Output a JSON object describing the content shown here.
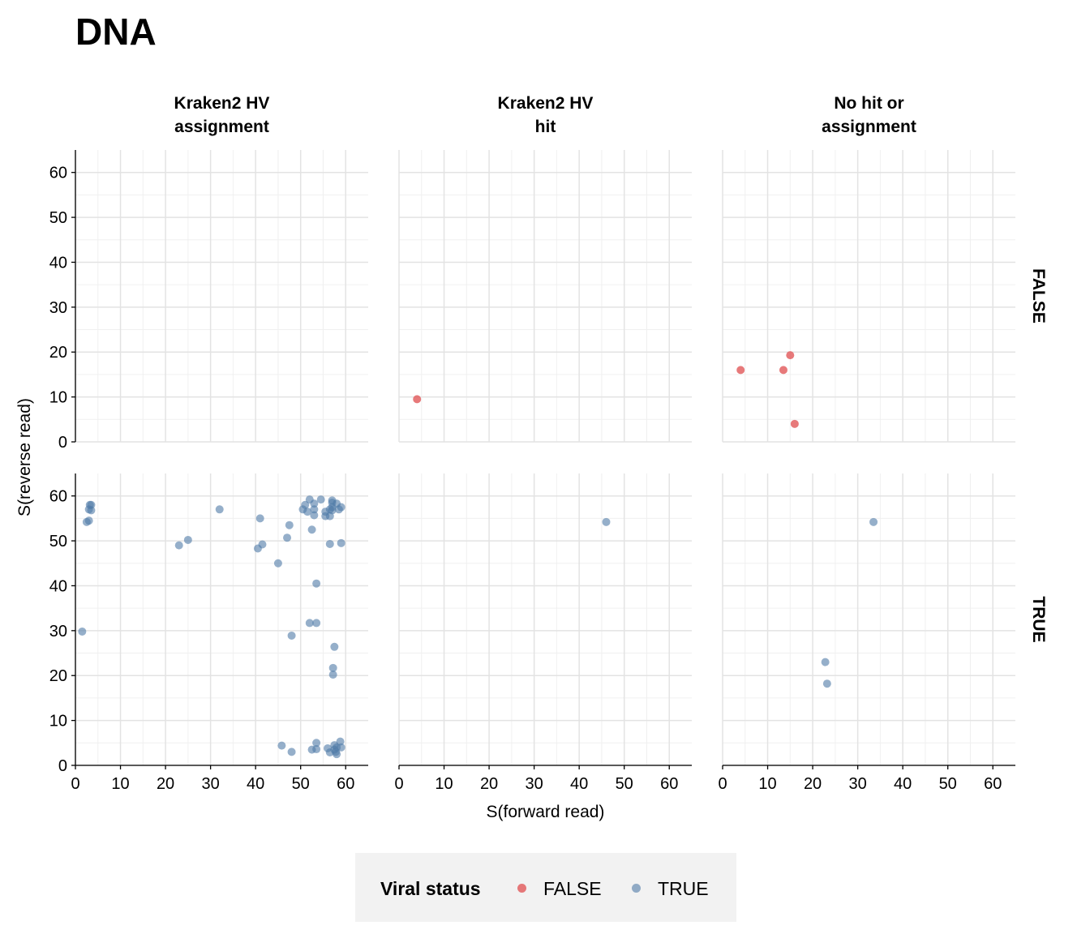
{
  "title": "DNA",
  "chart_data": {
    "type": "scatter",
    "title": "DNA",
    "xlabel": "S(forward read)",
    "ylabel": "S(reverse read)",
    "xlim": [
      0,
      65
    ],
    "ylim": [
      0,
      65
    ],
    "x_ticks": [
      0,
      10,
      20,
      30,
      40,
      50,
      60
    ],
    "y_ticks": [
      0,
      10,
      20,
      30,
      40,
      50,
      60
    ],
    "grid": true,
    "facet_columns": [
      "Kraken2 HV\nassignment",
      "Kraken2 HV\nhit",
      "No hit or\nassignment"
    ],
    "facet_rows": [
      "FALSE",
      "TRUE"
    ],
    "legend": {
      "title": "Viral status",
      "position": "bottom",
      "entries": [
        {
          "label": "FALSE",
          "color": "#e15759"
        },
        {
          "label": "TRUE",
          "color": "#4e79a7"
        }
      ]
    },
    "panels": [
      {
        "col": 0,
        "row": 0,
        "points": []
      },
      {
        "col": 1,
        "row": 0,
        "points": [
          [
            4.0,
            9.5
          ]
        ]
      },
      {
        "col": 2,
        "row": 0,
        "points": [
          [
            4.0,
            16.0
          ],
          [
            13.5,
            16.0
          ],
          [
            15.0,
            19.3
          ],
          [
            16.0,
            4.0
          ]
        ]
      },
      {
        "col": 0,
        "row": 1,
        "points": [
          [
            2.5,
            54.2
          ],
          [
            3.0,
            54.5
          ],
          [
            3.0,
            57.0
          ],
          [
            3.2,
            58.0
          ],
          [
            3.5,
            58.0
          ],
          [
            3.5,
            56.8
          ],
          [
            1.5,
            29.8
          ],
          [
            23.0,
            49.0
          ],
          [
            25.0,
            50.2
          ],
          [
            32.0,
            57.0
          ],
          [
            41.0,
            55.0
          ],
          [
            40.5,
            48.3
          ],
          [
            41.5,
            49.2
          ],
          [
            45.0,
            45.0
          ],
          [
            47.0,
            50.7
          ],
          [
            47.5,
            53.5
          ],
          [
            48.0,
            28.9
          ],
          [
            48.0,
            3.0
          ],
          [
            45.8,
            4.4
          ],
          [
            50.5,
            57.0
          ],
          [
            51.0,
            58.0
          ],
          [
            51.5,
            56.5
          ],
          [
            52.0,
            59.2
          ],
          [
            52.0,
            31.7
          ],
          [
            52.5,
            52.5
          ],
          [
            52.5,
            3.5
          ],
          [
            53.0,
            58.3
          ],
          [
            53.0,
            57.0
          ],
          [
            53.0,
            55.7
          ],
          [
            53.5,
            40.5
          ],
          [
            53.5,
            31.7
          ],
          [
            53.5,
            5.0
          ],
          [
            53.5,
            3.6
          ],
          [
            54.5,
            59.2
          ],
          [
            55.5,
            56.5
          ],
          [
            55.5,
            55.5
          ],
          [
            56.0,
            3.8
          ],
          [
            56.5,
            57.0
          ],
          [
            56.5,
            55.5
          ],
          [
            56.5,
            49.3
          ],
          [
            56.5,
            2.9
          ],
          [
            57.0,
            59.0
          ],
          [
            57.0,
            58.5
          ],
          [
            57.0,
            57.5
          ],
          [
            57.0,
            56.8
          ],
          [
            57.2,
            21.7
          ],
          [
            57.2,
            20.2
          ],
          [
            57.5,
            26.4
          ],
          [
            57.5,
            4.5
          ],
          [
            57.5,
            3.5
          ],
          [
            57.8,
            3.0
          ],
          [
            58.0,
            58.3
          ],
          [
            58.0,
            2.5
          ],
          [
            58.0,
            4.0
          ],
          [
            58.5,
            57.0
          ],
          [
            58.8,
            5.3
          ],
          [
            59.0,
            57.5
          ],
          [
            59.0,
            49.5
          ],
          [
            59.0,
            4.0
          ]
        ]
      },
      {
        "col": 1,
        "row": 1,
        "points": [
          [
            46.0,
            54.2
          ]
        ]
      },
      {
        "col": 2,
        "row": 1,
        "points": [
          [
            33.5,
            54.2
          ],
          [
            22.8,
            23.0
          ],
          [
            23.2,
            18.2
          ]
        ]
      }
    ]
  }
}
